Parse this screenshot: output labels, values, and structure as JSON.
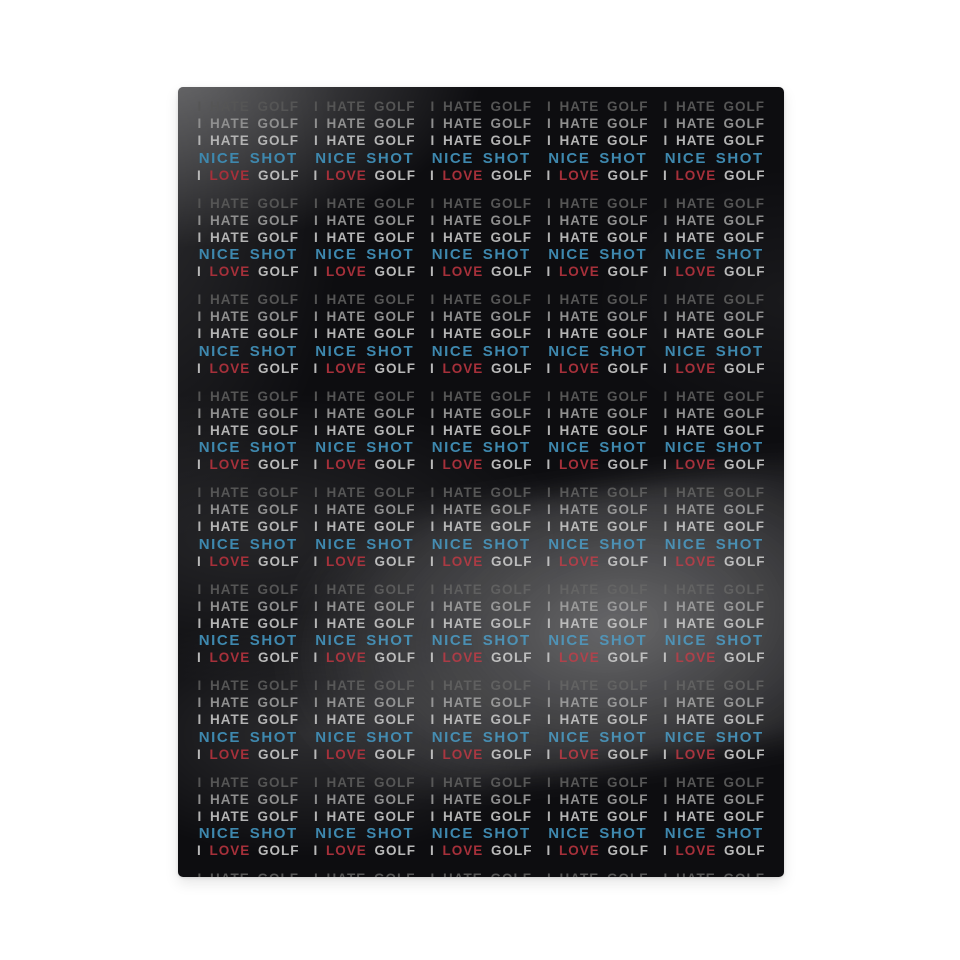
{
  "product_image": {
    "page_background": "#ffffff",
    "panel_background": "#0d0d10",
    "grid": {
      "columns": 5,
      "rows": 9,
      "last_row_partial": true
    },
    "tile": {
      "lines": [
        {
          "id": "i-hate-golf-faint",
          "text": "I HATE GOLF",
          "color": "#555555"
        },
        {
          "id": "i-hate-golf-mid",
          "text": "I HATE GOLF",
          "color": "#8f8f8f"
        },
        {
          "id": "i-hate-golf-bright",
          "text": "I HATE GOLF",
          "color": "#b4b4b4"
        },
        {
          "id": "nice-shot",
          "text": "NICE SHOT",
          "color": "#3e88ae"
        },
        {
          "id": "i-love-golf",
          "segments": [
            {
              "text": "I ",
              "color": "#b9b9b9"
            },
            {
              "text": "LOVE",
              "color": "#a6303a"
            },
            {
              "text": " GOLF",
              "color": "#b9b9b9"
            }
          ]
        }
      ]
    },
    "colors": {
      "hate_faint": "#555555",
      "hate_mid": "#8f8f8f",
      "hate_bright": "#b4b4b4",
      "nice_shot_blue": "#3e88ae",
      "love_red": "#a6303a",
      "print_white": "#b9b9b9"
    }
  }
}
